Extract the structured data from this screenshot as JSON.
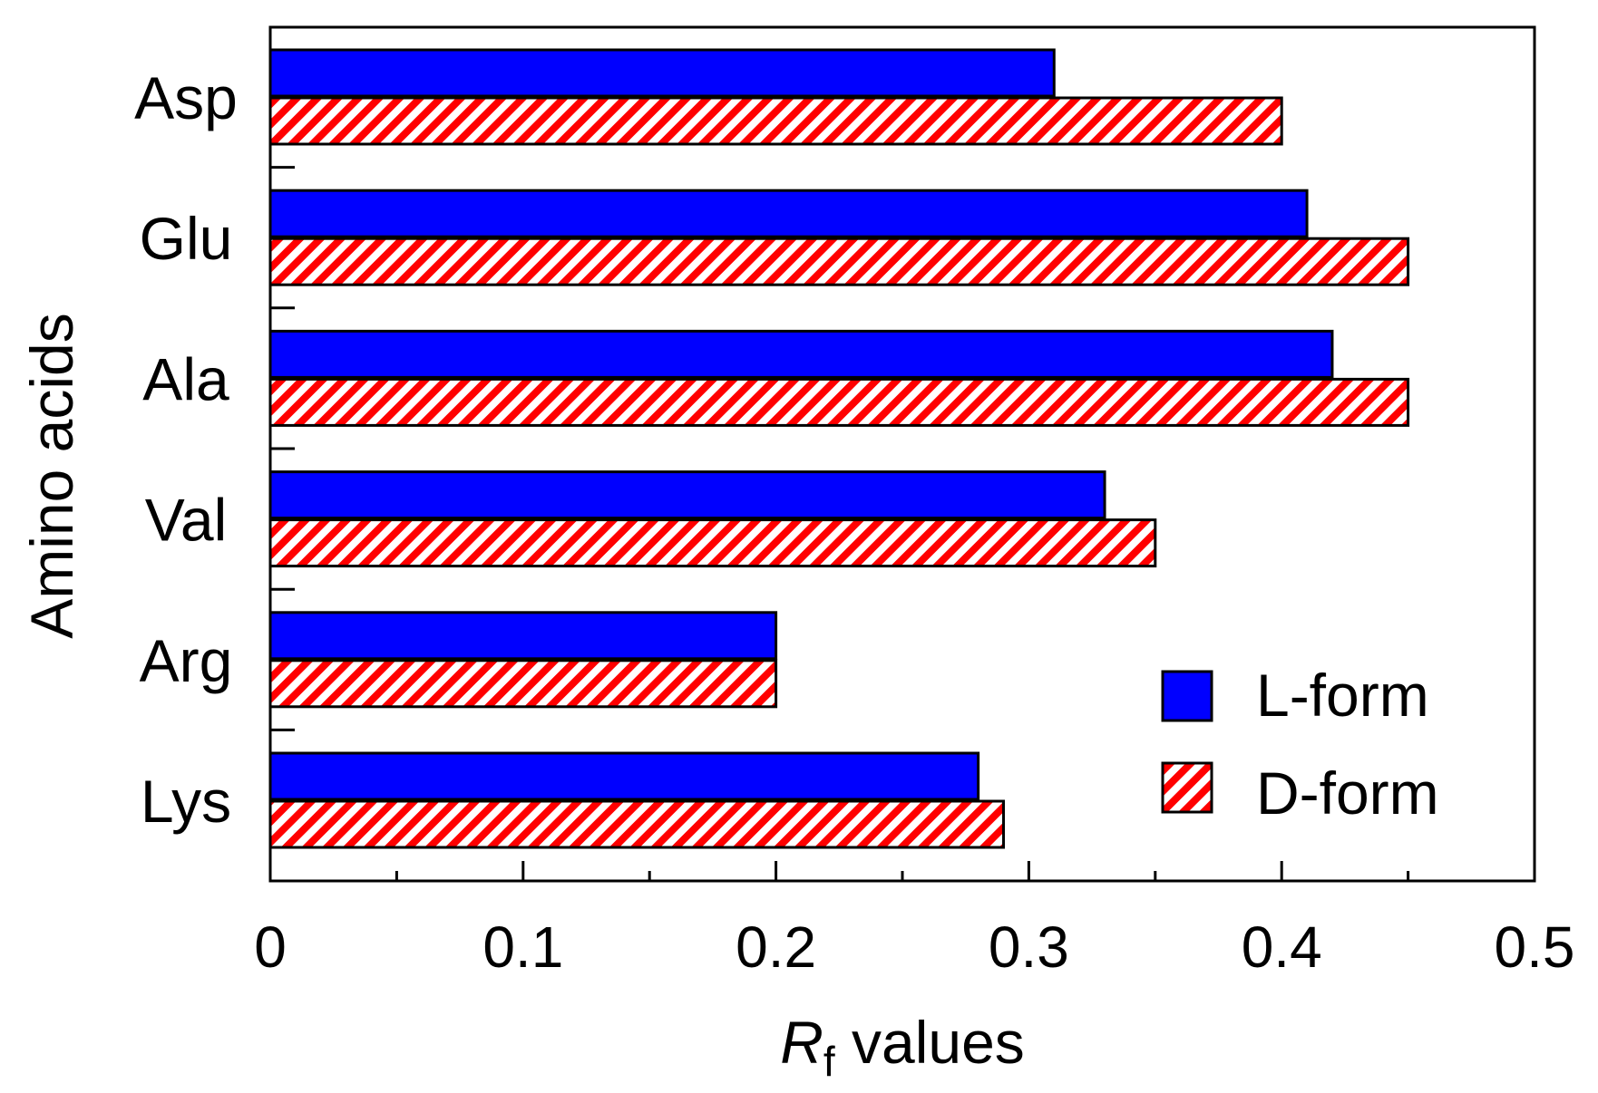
{
  "chart_data": {
    "type": "bar",
    "orientation": "horizontal",
    "categories": [
      "Asp",
      "Glu",
      "Ala",
      "Val",
      "Arg",
      "Lys"
    ],
    "series": [
      {
        "name": "L-form",
        "values": [
          0.31,
          0.41,
          0.42,
          0.33,
          0.2,
          0.28
        ],
        "color": "#0000ff",
        "pattern": "solid"
      },
      {
        "name": "D-form",
        "values": [
          0.4,
          0.45,
          0.45,
          0.35,
          0.2,
          0.29
        ],
        "color": "#ff0000",
        "pattern": "hatched"
      }
    ],
    "xlabel_italic": "R",
    "xlabel_subscript": "f",
    "xlabel_rest": " values",
    "ylabel": "Amino acids",
    "xlim": [
      0,
      0.5
    ],
    "xticks": [
      "0",
      "0.1",
      "0.2",
      "0.3",
      "0.4",
      "0.5"
    ],
    "xtick_values": [
      0,
      0.1,
      0.2,
      0.3,
      0.4,
      0.5
    ],
    "xminor_tick_values": [
      0.05,
      0.15,
      0.25,
      0.35,
      0.45
    ],
    "legend_position": "bottom-right",
    "grid": false
  }
}
